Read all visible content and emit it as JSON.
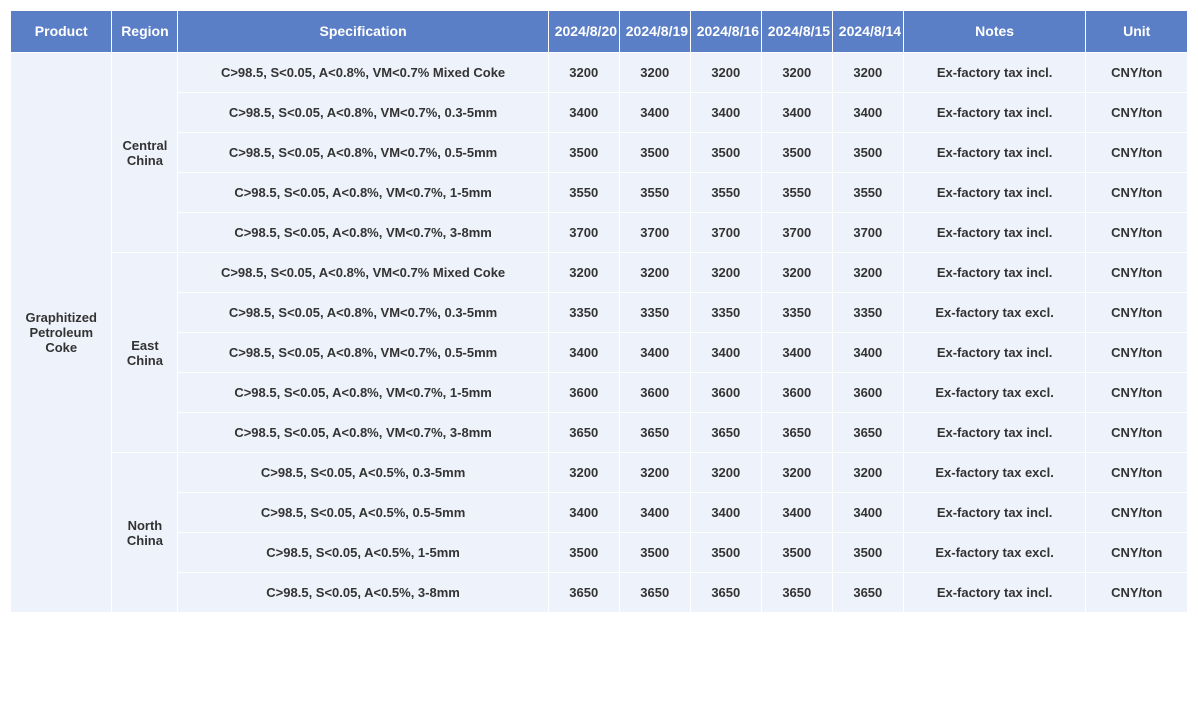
{
  "table": {
    "header_bg": "#5b7fc7",
    "header_fg": "#ffffff",
    "cell_bg": "#eef2fa",
    "cell_fg": "#333333",
    "border_color": "#ffffff",
    "font_size_header": 14,
    "font_size_cell": 13,
    "columns": [
      "Product",
      "Region",
      "Specification",
      "2024/8/20",
      "2024/8/19",
      "2024/8/16",
      "2024/8/15",
      "2024/8/14",
      "Notes",
      "Unit"
    ],
    "product": "Graphitized Petroleum Coke",
    "regions": [
      {
        "name": "Central China",
        "rows": [
          {
            "spec": "C>98.5, S<0.05, A<0.8%, VM<0.7% Mixed Coke",
            "vals": [
              "3200",
              "3200",
              "3200",
              "3200",
              "3200"
            ],
            "notes": "Ex-factory tax incl.",
            "unit": "CNY/ton"
          },
          {
            "spec": "C>98.5, S<0.05, A<0.8%, VM<0.7%, 0.3-5mm",
            "vals": [
              "3400",
              "3400",
              "3400",
              "3400",
              "3400"
            ],
            "notes": "Ex-factory tax incl.",
            "unit": "CNY/ton"
          },
          {
            "spec": "C>98.5, S<0.05, A<0.8%, VM<0.7%, 0.5-5mm",
            "vals": [
              "3500",
              "3500",
              "3500",
              "3500",
              "3500"
            ],
            "notes": "Ex-factory tax incl.",
            "unit": "CNY/ton"
          },
          {
            "spec": "C>98.5, S<0.05, A<0.8%, VM<0.7%, 1-5mm",
            "vals": [
              "3550",
              "3550",
              "3550",
              "3550",
              "3550"
            ],
            "notes": "Ex-factory tax incl.",
            "unit": "CNY/ton"
          },
          {
            "spec": "C>98.5, S<0.05, A<0.8%, VM<0.7%, 3-8mm",
            "vals": [
              "3700",
              "3700",
              "3700",
              "3700",
              "3700"
            ],
            "notes": "Ex-factory tax incl.",
            "unit": "CNY/ton"
          }
        ]
      },
      {
        "name": "East China",
        "rows": [
          {
            "spec": "C>98.5, S<0.05, A<0.8%, VM<0.7% Mixed Coke",
            "vals": [
              "3200",
              "3200",
              "3200",
              "3200",
              "3200"
            ],
            "notes": "Ex-factory tax incl.",
            "unit": "CNY/ton"
          },
          {
            "spec": "C>98.5, S<0.05, A<0.8%, VM<0.7%, 0.3-5mm",
            "vals": [
              "3350",
              "3350",
              "3350",
              "3350",
              "3350"
            ],
            "notes": "Ex-factory tax excl.",
            "unit": "CNY/ton"
          },
          {
            "spec": "C>98.5, S<0.05, A<0.8%, VM<0.7%, 0.5-5mm",
            "vals": [
              "3400",
              "3400",
              "3400",
              "3400",
              "3400"
            ],
            "notes": "Ex-factory tax incl.",
            "unit": "CNY/ton"
          },
          {
            "spec": "C>98.5, S<0.05, A<0.8%, VM<0.7%, 1-5mm",
            "vals": [
              "3600",
              "3600",
              "3600",
              "3600",
              "3600"
            ],
            "notes": "Ex-factory tax excl.",
            "unit": "CNY/ton"
          },
          {
            "spec": "C>98.5, S<0.05, A<0.8%, VM<0.7%, 3-8mm",
            "vals": [
              "3650",
              "3650",
              "3650",
              "3650",
              "3650"
            ],
            "notes": "Ex-factory tax incl.",
            "unit": "CNY/ton"
          }
        ]
      },
      {
        "name": "North China",
        "rows": [
          {
            "spec": "C>98.5, S<0.05, A<0.5%, 0.3-5mm",
            "vals": [
              "3200",
              "3200",
              "3200",
              "3200",
              "3200"
            ],
            "notes": "Ex-factory tax excl.",
            "unit": "CNY/ton"
          },
          {
            "spec": "C>98.5, S<0.05, A<0.5%, 0.5-5mm",
            "vals": [
              "3400",
              "3400",
              "3400",
              "3400",
              "3400"
            ],
            "notes": "Ex-factory tax incl.",
            "unit": "CNY/ton"
          },
          {
            "spec": "C>98.5, S<0.05, A<0.5%, 1-5mm",
            "vals": [
              "3500",
              "3500",
              "3500",
              "3500",
              "3500"
            ],
            "notes": "Ex-factory tax excl.",
            "unit": "CNY/ton"
          },
          {
            "spec": "C>98.5, S<0.05, A<0.5%, 3-8mm",
            "vals": [
              "3650",
              "3650",
              "3650",
              "3650",
              "3650"
            ],
            "notes": "Ex-factory tax incl.",
            "unit": "CNY/ton"
          }
        ]
      }
    ]
  }
}
